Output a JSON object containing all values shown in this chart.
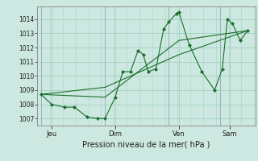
{
  "background_color": "#cce8e0",
  "grid_color": "#99ccbb",
  "line_color": "#1a6e2a",
  "marker_color": "#1a6e2a",
  "xlabel": "Pression niveau de la mer( hPa )",
  "ylim": [
    1006.5,
    1014.9
  ],
  "yticks": [
    1007,
    1008,
    1009,
    1010,
    1011,
    1012,
    1013,
    1014
  ],
  "x_day_labels": [
    [
      "Jeu",
      0.4
    ],
    [
      "Dim",
      2.9
    ],
    [
      "Ven",
      5.4
    ],
    [
      "Sam",
      7.4
    ]
  ],
  "x_vlines": [
    0.0,
    2.5,
    5.0,
    7.0
  ],
  "xlim": [
    -0.15,
    8.4
  ],
  "series1": [
    [
      0.0,
      1008.7
    ],
    [
      0.4,
      1008.0
    ],
    [
      0.9,
      1007.8
    ],
    [
      1.3,
      1007.8
    ],
    [
      1.8,
      1007.1
    ],
    [
      2.2,
      1007.0
    ],
    [
      2.5,
      1007.0
    ],
    [
      2.9,
      1008.5
    ],
    [
      3.2,
      1010.3
    ],
    [
      3.5,
      1010.3
    ],
    [
      3.8,
      1011.8
    ],
    [
      4.0,
      1011.5
    ],
    [
      4.2,
      1010.3
    ],
    [
      4.5,
      1010.5
    ],
    [
      4.8,
      1013.3
    ],
    [
      5.0,
      1013.8
    ],
    [
      5.3,
      1014.4
    ],
    [
      5.4,
      1014.5
    ],
    [
      5.8,
      1012.2
    ],
    [
      6.3,
      1010.3
    ],
    [
      6.8,
      1009.0
    ],
    [
      7.1,
      1010.5
    ],
    [
      7.3,
      1014.0
    ],
    [
      7.5,
      1013.7
    ],
    [
      7.8,
      1012.5
    ],
    [
      8.1,
      1013.2
    ]
  ],
  "series2": [
    [
      0.0,
      1008.7
    ],
    [
      2.5,
      1008.5
    ],
    [
      5.4,
      1012.5
    ],
    [
      8.1,
      1013.2
    ]
  ],
  "series3": [
    [
      0.0,
      1008.7
    ],
    [
      2.5,
      1009.2
    ],
    [
      5.4,
      1011.5
    ],
    [
      8.1,
      1013.2
    ]
  ]
}
